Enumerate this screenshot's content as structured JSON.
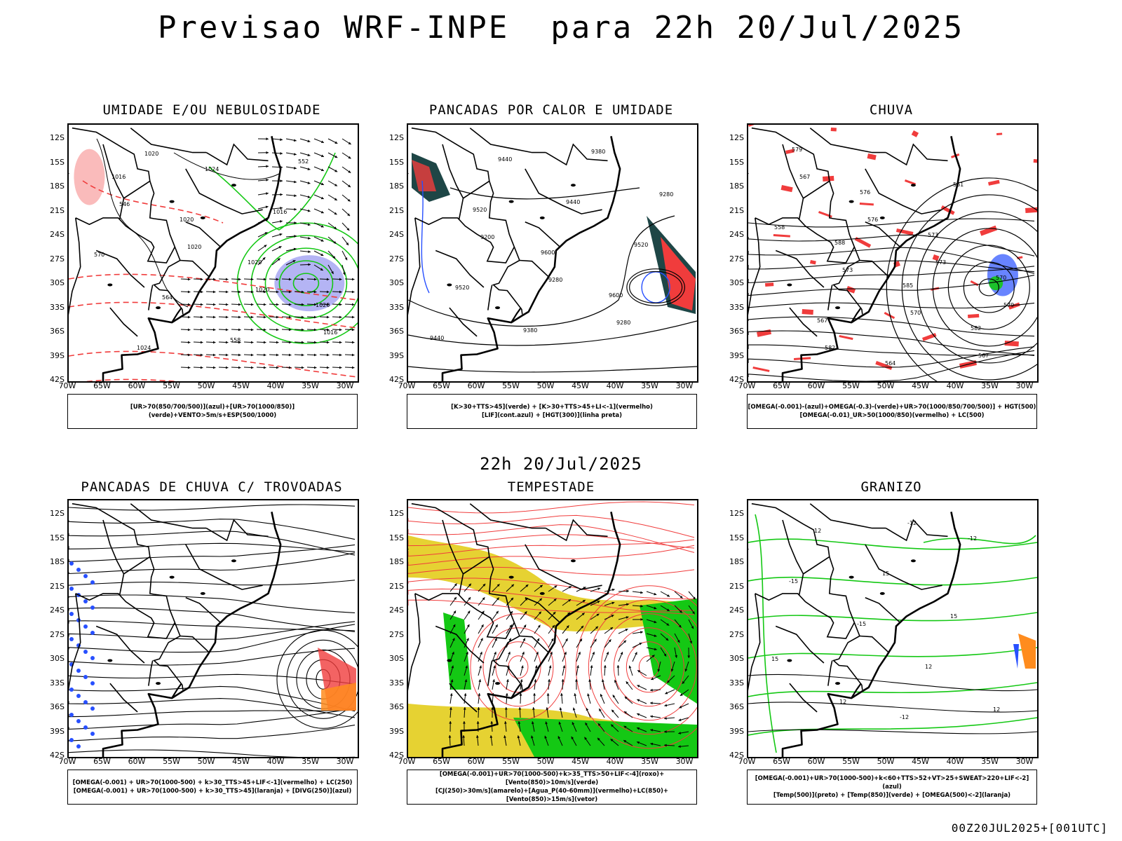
{
  "title": "Previsao WRF-INPE  para 22h 20/Jul/2025",
  "mid_time": "22h 20/Jul/2025",
  "footer": "00Z20JUL2025+[001UTC]",
  "lat_labels": [
    "12S",
    "15S",
    "18S",
    "21S",
    "24S",
    "27S",
    "30S",
    "33S",
    "36S",
    "39S",
    "42S"
  ],
  "lon_labels": [
    "70W",
    "65W",
    "60W",
    "55W",
    "50W",
    "45W",
    "40W",
    "35W",
    "30W"
  ],
  "colors": {
    "red": "#f03c3c",
    "green": "#14c814",
    "blue": "#2850ff",
    "lavender": "#9b9bf0",
    "yellow": "#e6d232",
    "orange": "#ff8c1e",
    "darkteal": "#1e4646"
  },
  "panels": [
    {
      "id": "p1",
      "title": "UMIDADE E/OU NEBULOSIDADE",
      "legend": [
        "[UR>70(850/700/500)](azul)+[UR>70(1000/850)](verde)+VENTO>5m/s+ESP(500/1000)"
      ],
      "contour_labels": [
        "1016",
        "1020",
        "1020",
        "1020",
        "1024",
        "1024",
        "1016",
        "570",
        "564",
        "558",
        "552",
        "546",
        "1020",
        "1020",
        "1016",
        "1020"
      ]
    },
    {
      "id": "p2",
      "title": "PANCADAS POR CALOR E UMIDADE",
      "legend": [
        "[K>30+TTS>45](verde) + [K>30+TTS>45+LI<-1](vermelho)",
        "[LIF](cont.azul) + [HGT(300)](linha preta)"
      ],
      "contour_labels": [
        "9520",
        "9600",
        "9600",
        "9440",
        "9440",
        "9440",
        "9520",
        "9520",
        "9380",
        "9380",
        "9280",
        "9200",
        "9280",
        "9280"
      ]
    },
    {
      "id": "p3",
      "title": "CHUVA",
      "legend": [
        "[OMEGA(-0.001)-(azul)+OMEGA(-0.3)-(verde)+UR>70(1000/850/700/500)] + HGT(500)",
        "[OMEGA(-0.01)_UR>50(1000/850)(vermelho) + LC(500)"
      ],
      "contour_labels": [
        "588",
        "585",
        "582",
        "579",
        "576",
        "573",
        "570",
        "567",
        "564",
        "561",
        "558",
        "573",
        "570",
        "567",
        "567",
        "576",
        "573",
        "579",
        "582"
      ]
    },
    {
      "id": "p4",
      "title": "PANCADAS DE CHUVA C/ TROVOADAS",
      "legend": [
        "[OMEGA(-0.001) + UR>70(1000-500) + k>30_TTS>45+LIF<-1](vermelho) + LC(250)",
        "[OMEGA(-0.001) + UR>70(1000-500) + k>30_TTS>45](laranja) + [DIVG(250)](azul)"
      ],
      "contour_labels": []
    },
    {
      "id": "p5",
      "title": "TEMPESTADE",
      "legend": [
        "[OMEGA(-0.001)+UR>70(1000-500)+k>35_TTS>50+LIF<-4](roxo)+[Vento(850)>10m/s](verde)",
        "[CJ(250)>30m/s](amarelo)+[Agua_P(40-60mm)](vermelho)+LC(850)+[Vento(850)>15m/s](vetor)"
      ],
      "contour_labels": []
    },
    {
      "id": "p6",
      "title": "GRANIZO",
      "legend": [
        "[OMEGA(-0.001)+UR>70(1000-500)+k<60+TTS>52+VT>25+SWEAT>220+LIF<-2](azul)",
        "[Temp(500)](preto) + [Temp(850)](verde) + [OMEGA(500)<-2](laranja)"
      ],
      "contour_labels": [
        "-12",
        "-12",
        "-15",
        "-15",
        "12",
        "12",
        "12",
        "15",
        "15",
        "15",
        "12",
        "-12"
      ]
    }
  ]
}
